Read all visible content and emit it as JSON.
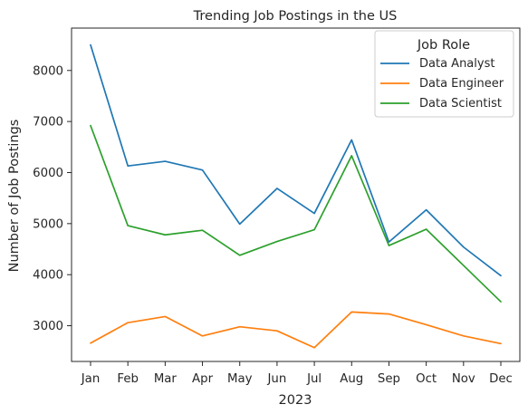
{
  "chart_data": {
    "type": "line",
    "title": "Trending Job Postings in the US",
    "xlabel": "2023",
    "ylabel": "Number of Job Postings",
    "categories": [
      "Jan",
      "Feb",
      "Mar",
      "Apr",
      "May",
      "Jun",
      "Jul",
      "Aug",
      "Sep",
      "Oct",
      "Nov",
      "Dec"
    ],
    "yticks": [
      3000,
      4000,
      5000,
      6000,
      7000,
      8000
    ],
    "ylim": [
      2300,
      8830
    ],
    "grid": false,
    "legend": {
      "title": "Job Role",
      "position": "top-right"
    },
    "series": [
      {
        "name": "Data Analyst",
        "color": "#1f77b4",
        "values": [
          8500,
          6130,
          6220,
          6050,
          4990,
          5690,
          5200,
          6640,
          4640,
          5270,
          4540,
          3980
        ]
      },
      {
        "name": "Data Engineer",
        "color": "#ff7f0e",
        "values": [
          2660,
          3060,
          3180,
          2800,
          2980,
          2900,
          2570,
          3270,
          3230,
          3020,
          2800,
          2650
        ]
      },
      {
        "name": "Data Scientist",
        "color": "#2ca02c",
        "values": [
          6920,
          4960,
          4780,
          4870,
          4380,
          4650,
          4880,
          6330,
          4570,
          4890,
          4180,
          3470
        ]
      }
    ]
  }
}
